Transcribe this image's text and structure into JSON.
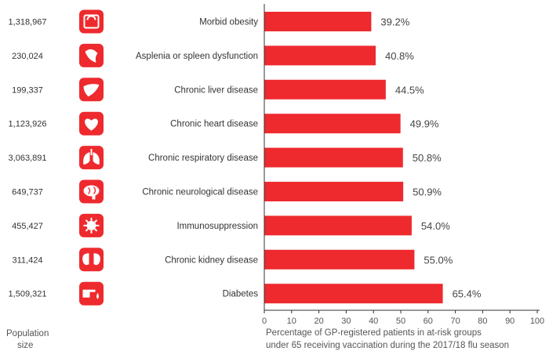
{
  "colors": {
    "bar": "#ee2a2e",
    "icon_bg": "#ee2a2e",
    "axis": "#333333",
    "text": "#333333"
  },
  "footer": {
    "population_label_line1": "Population",
    "population_label_line2": "size",
    "xlabel_line1": "Percentage of GP-registered patients in at-risk groups",
    "xlabel_line2": "under 65 receiving vaccination during the 2017/18 flu season"
  },
  "chart_data": {
    "type": "bar",
    "orientation": "horizontal",
    "categories": [
      "Morbid obesity",
      "Asplenia or spleen dysfunction",
      "Chronic liver disease",
      "Chronic heart disease",
      "Chronic respiratory disease",
      "Chronic neurological disease",
      "Immunosuppression",
      "Chronic kidney disease",
      "Diabetes"
    ],
    "values": [
      39.2,
      40.8,
      44.5,
      49.9,
      50.8,
      50.9,
      54.0,
      55.0,
      65.4
    ],
    "value_labels": [
      "39.2%",
      "40.8%",
      "44.5%",
      "49.9%",
      "50.8%",
      "50.9%",
      "54.0%",
      "55.0%",
      "65.4%"
    ],
    "population": [
      "1,318,967",
      "230,024",
      "199,337",
      "1,123,926",
      "3,063,891",
      "649,737",
      "455,427",
      "311,424",
      "1,509,321"
    ],
    "icons": [
      "scale-icon",
      "spleen-icon",
      "liver-icon",
      "heart-icon",
      "lungs-icon",
      "brain-icon",
      "virus-icon",
      "kidneys-icon",
      "blood-drop-icon"
    ],
    "xlim": [
      0,
      100
    ],
    "xticks": [
      0,
      10,
      20,
      30,
      40,
      50,
      60,
      70,
      80,
      90,
      100
    ],
    "grid": false,
    "legend": "none"
  }
}
